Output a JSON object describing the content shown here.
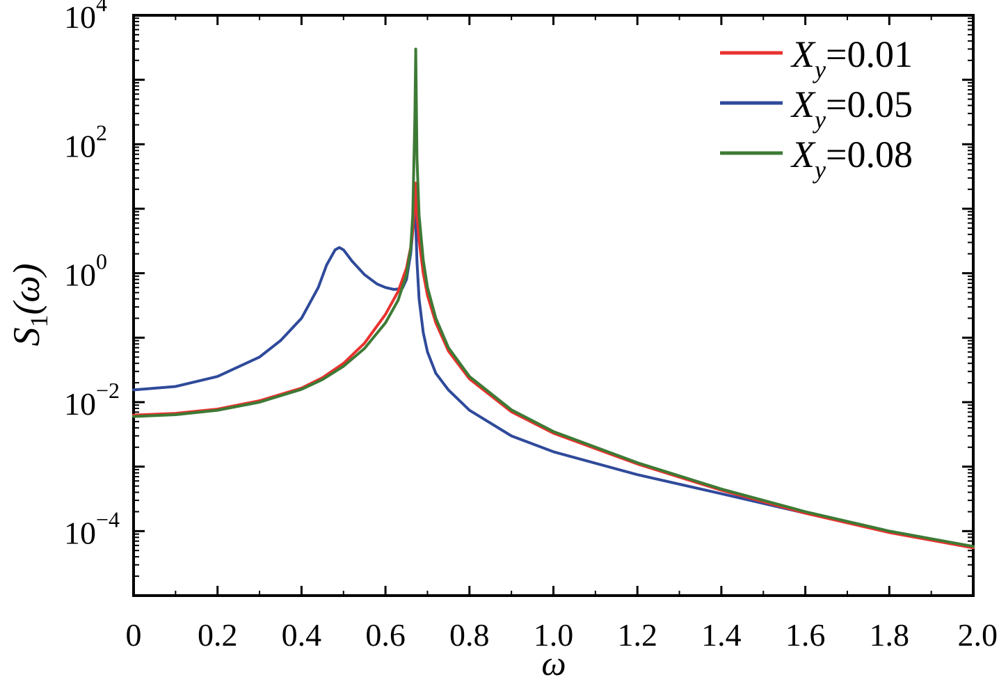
{
  "chart_data": {
    "type": "line",
    "title": "",
    "xlabel": "ω",
    "ylabel": "S1(ω)",
    "ylabel_main": "S",
    "ylabel_sub": "1",
    "ylabel_rest": "(ω)",
    "xlim": [
      0,
      2.0
    ],
    "ylim": [
      1e-05,
      10000.0
    ],
    "yscale": "log",
    "grid": false,
    "legend_position": "top-right",
    "x_ticks": [
      "0",
      "0.2",
      "0.4",
      "0.6",
      "0.8",
      "1.0",
      "1.2",
      "1.4",
      "1.6",
      "1.8",
      "2.0"
    ],
    "y_ticks": [
      {
        "value": 0.0001,
        "base": "10",
        "exp": "−4"
      },
      {
        "value": 0.01,
        "base": "10",
        "exp": "−2"
      },
      {
        "value": 1,
        "base": "10",
        "exp": "0"
      },
      {
        "value": 100,
        "base": "10",
        "exp": "2"
      },
      {
        "value": 10000,
        "base": "10",
        "exp": "4"
      }
    ],
    "series": [
      {
        "name": "Xy=0.01",
        "label_var": "X",
        "label_sub": "y",
        "label_val": "=0.01",
        "color": "#e8322e",
        "x": [
          0,
          0.1,
          0.2,
          0.3,
          0.4,
          0.45,
          0.5,
          0.55,
          0.6,
          0.63,
          0.65,
          0.66,
          0.665,
          0.67,
          0.672,
          0.675,
          0.68,
          0.69,
          0.7,
          0.72,
          0.75,
          0.8,
          0.9,
          1.0,
          1.2,
          1.4,
          1.6,
          1.8,
          2.0
        ],
        "y": [
          0.0063,
          0.0067,
          0.0078,
          0.0105,
          0.0165,
          0.024,
          0.04,
          0.082,
          0.23,
          0.52,
          1.2,
          2.5,
          4.6,
          12,
          25,
          8,
          3.2,
          1.0,
          0.45,
          0.17,
          0.062,
          0.023,
          0.0071,
          0.0033,
          0.0011,
          0.00043,
          0.00019,
          9.5e-05,
          5.5e-05
        ]
      },
      {
        "name": "Xy=0.05",
        "label_var": "X",
        "label_sub": "y",
        "label_val": "=0.05",
        "color": "#2f4a9a",
        "x": [
          0,
          0.1,
          0.2,
          0.3,
          0.35,
          0.4,
          0.44,
          0.46,
          0.48,
          0.49,
          0.5,
          0.52,
          0.55,
          0.58,
          0.6,
          0.62,
          0.64,
          0.65,
          0.66,
          0.665,
          0.67,
          0.672,
          0.675,
          0.68,
          0.69,
          0.7,
          0.72,
          0.75,
          0.8,
          0.9,
          1.0,
          1.2,
          1.4,
          1.6,
          1.8,
          2.0
        ],
        "y": [
          0.0155,
          0.0175,
          0.025,
          0.05,
          0.09,
          0.2,
          0.6,
          1.35,
          2.3,
          2.5,
          2.3,
          1.55,
          0.95,
          0.68,
          0.6,
          0.56,
          0.58,
          0.8,
          2.0,
          4.5,
          10,
          6,
          1.5,
          0.4,
          0.12,
          0.06,
          0.028,
          0.0155,
          0.0075,
          0.003,
          0.0017,
          0.00075,
          0.00038,
          0.00019,
          9.7e-05,
          5.5e-05
        ]
      },
      {
        "name": "Xy=0.08",
        "label_var": "X",
        "label_sub": "y",
        "label_val": "=0.08",
        "color": "#3d7a35",
        "x": [
          0,
          0.1,
          0.2,
          0.3,
          0.4,
          0.45,
          0.5,
          0.55,
          0.6,
          0.63,
          0.65,
          0.66,
          0.665,
          0.67,
          0.672,
          0.675,
          0.68,
          0.69,
          0.7,
          0.72,
          0.75,
          0.8,
          0.9,
          1.0,
          1.2,
          1.4,
          1.6,
          1.8,
          2.0
        ],
        "y": [
          0.006,
          0.0064,
          0.0075,
          0.01,
          0.0158,
          0.0225,
          0.036,
          0.068,
          0.17,
          0.38,
          0.95,
          2.4,
          8,
          250,
          3000,
          60,
          8,
          1.6,
          0.6,
          0.2,
          0.07,
          0.025,
          0.0076,
          0.0035,
          0.00115,
          0.00045,
          0.0002,
          0.0001,
          5.8e-05
        ]
      }
    ]
  }
}
